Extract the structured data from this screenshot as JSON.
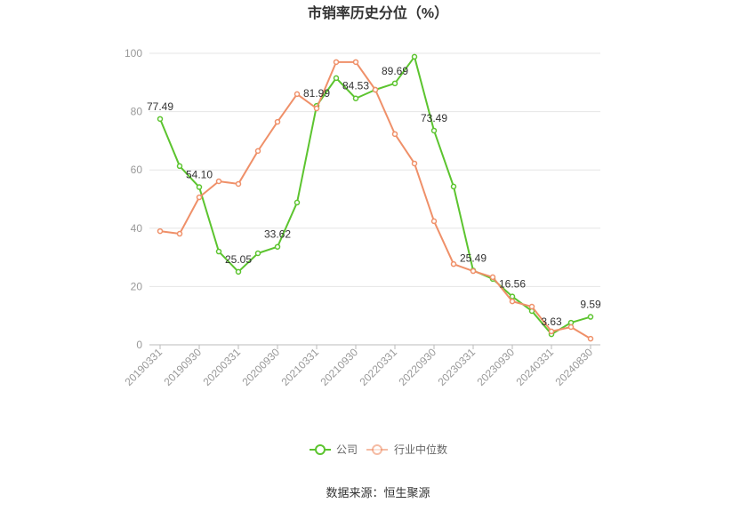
{
  "source": "数据来源：恒生聚源",
  "chart_data": {
    "type": "line",
    "title": "市销率历史分位（%）",
    "xlabel": "",
    "ylabel": "",
    "categories": [
      "20190331",
      "",
      "20190930",
      "",
      "20200331",
      "",
      "20200930",
      "",
      "20210331",
      "",
      "20210930",
      "",
      "20220331",
      "",
      "20220930",
      "",
      "20230331",
      "",
      "20230930",
      "",
      "20240331",
      "",
      "20240830"
    ],
    "ylim": [
      0,
      100
    ],
    "yticks": [
      0,
      20,
      40,
      60,
      80,
      100
    ],
    "grid": true,
    "legend": "bottom-center",
    "series": [
      {
        "name": "公司",
        "color": "#5cc42f",
        "values": [
          77.49,
          61.3,
          54.1,
          32.0,
          25.05,
          31.4,
          33.62,
          48.8,
          81.99,
          91.5,
          84.53,
          87.5,
          89.69,
          98.8,
          73.49,
          54.3,
          25.49,
          22.6,
          16.56,
          11.6,
          3.63,
          7.6,
          9.59
        ],
        "data_labels": [
          "77.49",
          null,
          "54.10",
          null,
          "25.05",
          null,
          "33.62",
          null,
          "81.99",
          null,
          "84.53",
          null,
          "89.69",
          null,
          "73.49",
          null,
          "25.49",
          null,
          "16.56",
          null,
          "3.63",
          null,
          "9.59"
        ]
      },
      {
        "name": "行业中位数",
        "color": "#ef9069",
        "values": [
          39.0,
          38.1,
          50.6,
          56.1,
          55.2,
          66.5,
          76.5,
          86.0,
          81.1,
          97.0,
          97.0,
          87.5,
          72.3,
          62.2,
          42.4,
          27.7,
          25.3,
          23.2,
          14.9,
          13.1,
          4.6,
          6.1,
          2.1
        ]
      }
    ]
  }
}
